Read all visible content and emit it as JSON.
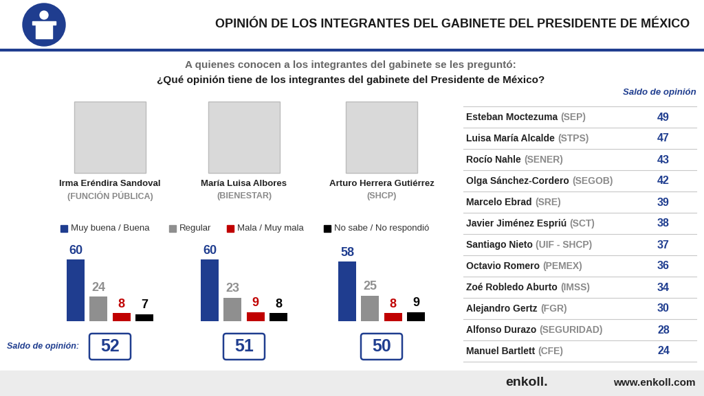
{
  "header": {
    "title": "OPINIÓN DE LOS INTEGRANTES DEL GABINETE DEL PRESIDENTE DE MÉXICO",
    "question_intro": "A quienes conocen a los integrantes del gabinete se les preguntó:",
    "question": "¿Qué opinión tiene de los integrantes del gabinete del Presidente de México?"
  },
  "bar_key": [
    {
      "name": "Muy buena / Buena",
      "color": "#1f3d8f"
    },
    {
      "name": "Regular",
      "color": "#8f8f8f"
    },
    {
      "name": "Mala / Muy mala",
      "color": "#c00000"
    },
    {
      "name": "No sabe / No respondió",
      "color": "#000000"
    }
  ],
  "saldo_label": "Saldo de opinión:",
  "chart_data": [
    {
      "type": "bar",
      "title": "Irma Eréndira Sandoval",
      "subtitle": "(FUNCIÓN PÚBLICA)",
      "values": [
        60,
        24,
        8,
        7
      ],
      "ylim": [
        0,
        70
      ],
      "tick_labels": false,
      "data_labels": true,
      "saldo": 52
    },
    {
      "type": "bar",
      "title": "María Luisa Albores",
      "subtitle": "(BIENESTAR)",
      "values": [
        60,
        23,
        9,
        8
      ],
      "ylim": [
        0,
        70
      ],
      "tick_labels": false,
      "data_labels": true,
      "saldo": 51
    },
    {
      "type": "bar",
      "title": "Arturo Herrera Gutiérrez",
      "subtitle": "(SHCP)",
      "values": [
        58,
        25,
        8,
        9
      ],
      "ylim": [
        0,
        70
      ],
      "tick_labels": false,
      "data_labels": true,
      "saldo": 50
    }
  ],
  "table": {
    "header": "Saldo de opinión",
    "rows": [
      {
        "name": "Esteban Moctezuma",
        "dept": "(SEP)",
        "value": 49
      },
      {
        "name": "Luisa María Alcalde",
        "dept": "(STPS)",
        "value": 47
      },
      {
        "name": "Rocío Nahle",
        "dept": "(SENER)",
        "value": 43
      },
      {
        "name": "Olga Sánchez-Cordero",
        "dept": "(SEGOB)",
        "value": 42
      },
      {
        "name": "Marcelo Ebrad",
        "dept": "(SRE)",
        "value": 39
      },
      {
        "name": "Javier Jiménez Espriú",
        "dept": "(SCT)",
        "value": 38
      },
      {
        "name": "Santiago Nieto",
        "dept": "(UIF - SHCP)",
        "value": 37
      },
      {
        "name": "Octavio Romero",
        "dept": "(PEMEX)",
        "value": 36
      },
      {
        "name": "Zoé Robledo Aburto",
        "dept": "(IMSS)",
        "value": 34
      },
      {
        "name": "Alejandro Gertz",
        "dept": "(FGR)",
        "value": 30
      },
      {
        "name": "Alfonso Durazo",
        "dept": "(SEGURIDAD)",
        "value": 28
      },
      {
        "name": "Manuel Bartlett",
        "dept": "(CFE)",
        "value": 24
      }
    ]
  },
  "footer": {
    "brand": "enkoll.",
    "url": "www.enkoll.com"
  }
}
